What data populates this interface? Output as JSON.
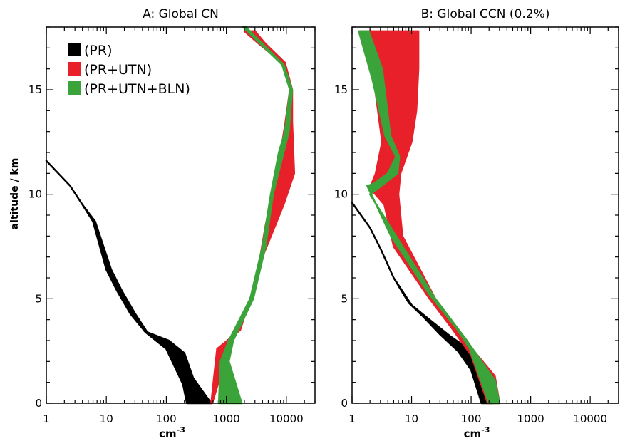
{
  "chart_data": [
    {
      "type": "area",
      "title": "A: Global CN",
      "xlabel": "cm",
      "xlabel_exponent": "-3",
      "ylabel": "altitude / km",
      "x_scale": "log",
      "xlim": [
        1,
        30000
      ],
      "ylim": [
        0,
        18
      ],
      "x_ticks": [
        1,
        10,
        100,
        1000,
        10000
      ],
      "x_tick_labels": [
        "1",
        "10",
        "100",
        "1000",
        "10000"
      ],
      "y_ticks": [
        0,
        5,
        10,
        15
      ],
      "y_tick_labels": [
        "0",
        "5",
        "10",
        "15"
      ],
      "grid": false,
      "legend_position": "top-left",
      "series": [
        {
          "name": "(PR)",
          "color": "#000000",
          "left": [
            [
              1,
              11.6
            ],
            [
              2.5,
              10.4
            ],
            [
              4,
              9.5
            ],
            [
              6,
              8.7
            ],
            [
              10,
              6.4
            ],
            [
              15,
              5.4
            ],
            [
              25,
              4.3
            ],
            [
              45,
              3.4
            ],
            [
              100,
              2.6
            ],
            [
              190,
              0.9
            ],
            [
              220,
              0
            ]
          ],
          "right": [
            [
              1,
              11.6
            ],
            [
              2.5,
              10.4
            ],
            [
              4,
              9.5
            ],
            [
              6.5,
              8.7
            ],
            [
              12,
              6.4
            ],
            [
              18,
              5.4
            ],
            [
              30,
              4.3
            ],
            [
              48,
              3.4
            ],
            [
              110,
              3.0
            ],
            [
              200,
              2.4
            ],
            [
              280,
              1.2
            ],
            [
              560,
              0
            ]
          ]
        },
        {
          "name": "(PR+UTN)",
          "color": "#e8202a",
          "left": [
            [
              2000,
              17.8
            ],
            [
              3500,
              17.2
            ],
            [
              8500,
              16.3
            ],
            [
              11500,
              15.0
            ],
            [
              9500,
              13.3
            ],
            [
              7000,
              11.0
            ],
            [
              4500,
              8.5
            ],
            [
              3200,
              6.0
            ],
            [
              1700,
              3.5
            ],
            [
              700,
              2.6
            ],
            [
              560,
              0
            ]
          ],
          "right": [
            [
              3000,
              17.8
            ],
            [
              4500,
              17.2
            ],
            [
              9500,
              16.3
            ],
            [
              12500,
              15.0
            ],
            [
              12500,
              13.5
            ],
            [
              13500,
              11.0
            ],
            [
              9000,
              9.5
            ],
            [
              4000,
              7.0
            ],
            [
              2500,
              5.0
            ],
            [
              1200,
              3.0
            ],
            [
              580,
              0
            ]
          ]
        },
        {
          "name": "(PR+UTN+BLN)",
          "color": "#3aa33a",
          "left": [
            [
              1900,
              18.0
            ],
            [
              8500,
              16.2
            ],
            [
              11500,
              15.0
            ],
            [
              9500,
              13.0
            ],
            [
              7500,
              12.0
            ],
            [
              5500,
              10.0
            ],
            [
              4000,
              7.5
            ],
            [
              2500,
              5.0
            ],
            [
              1100,
              3.0
            ],
            [
              800,
              2.0
            ],
            [
              750,
              0
            ]
          ],
          "right": [
            [
              2100,
              18.0
            ],
            [
              9000,
              16.2
            ],
            [
              12500,
              15.0
            ],
            [
              11000,
              13.0
            ],
            [
              9000,
              12.0
            ],
            [
              6000,
              10.0
            ],
            [
              4500,
              7.5
            ],
            [
              2800,
              5.0
            ],
            [
              1300,
              3.0
            ],
            [
              1100,
              2.0
            ],
            [
              1800,
              0
            ]
          ]
        }
      ]
    },
    {
      "type": "area",
      "title": "B: Global CCN (0.2%)",
      "xlabel": "cm",
      "xlabel_exponent": "-3",
      "x_scale": "log",
      "xlim": [
        1,
        30000
      ],
      "ylim": [
        0,
        18
      ],
      "x_ticks": [
        1,
        10,
        100,
        1000,
        10000
      ],
      "x_tick_labels": [
        "1",
        "10",
        "100",
        "1000",
        "10000"
      ],
      "y_ticks": [
        0,
        5,
        10,
        15
      ],
      "y_tick_labels": [
        "0",
        "5",
        "10",
        "15"
      ],
      "grid": false,
      "series": [
        {
          "name": "(PR)",
          "color": "#000000",
          "left": [
            [
              1,
              9.6
            ],
            [
              2,
              8.4
            ],
            [
              3,
              7.4
            ],
            [
              5,
              6.0
            ],
            [
              9,
              4.8
            ],
            [
              15,
              4.2
            ],
            [
              30,
              3.3
            ],
            [
              60,
              2.5
            ],
            [
              100,
              1.6
            ],
            [
              150,
              0
            ]
          ],
          "right": [
            [
              1,
              9.6
            ],
            [
              2,
              8.4
            ],
            [
              3,
              7.4
            ],
            [
              5,
              6.0
            ],
            [
              10,
              4.7
            ],
            [
              20,
              4.0
            ],
            [
              45,
              3.2
            ],
            [
              90,
              2.6
            ],
            [
              150,
              1.6
            ],
            [
              230,
              0
            ]
          ]
        },
        {
          "name": "(PR+UTN)",
          "color": "#e8202a",
          "left": [
            [
              1.4,
              17.8
            ],
            [
              2.2,
              16.0
            ],
            [
              3.2,
              12.5
            ],
            [
              2.5,
              11.0
            ],
            [
              2.0,
              10.3
            ],
            [
              3.5,
              9.5
            ],
            [
              5,
              7.5
            ],
            [
              20,
              5.0
            ],
            [
              50,
              3.5
            ],
            [
              100,
              2.3
            ],
            [
              190,
              0
            ]
          ],
          "right": [
            [
              13,
              17.8
            ],
            [
              13,
              16.0
            ],
            [
              12,
              14.0
            ],
            [
              10,
              12.5
            ],
            [
              6.5,
              11.0
            ],
            [
              6.0,
              10.0
            ],
            [
              7,
              8.0
            ],
            [
              25,
              5.0
            ],
            [
              80,
              3.0
            ],
            [
              250,
              1.3
            ],
            [
              300,
              0
            ]
          ]
        },
        {
          "name": "(PR+UTN+BLN)",
          "color": "#3aa33a",
          "left": [
            [
              1.3,
              17.8
            ],
            [
              2.2,
              15.5
            ],
            [
              3.6,
              12.8
            ],
            [
              5.5,
              11.8
            ],
            [
              4.0,
              11.0
            ],
            [
              2.3,
              10.5
            ],
            [
              1.8,
              10.4
            ],
            [
              4.5,
              8.0
            ],
            [
              20,
              5.2
            ],
            [
              60,
              3.5
            ],
            [
              95,
              2.6
            ],
            [
              200,
              0
            ]
          ],
          "right": [
            [
              1.9,
              17.8
            ],
            [
              3.2,
              16.0
            ],
            [
              4.4,
              12.8
            ],
            [
              6.2,
              11.8
            ],
            [
              5.8,
              11.0
            ],
            [
              2.8,
              10.3
            ],
            [
              2.0,
              10.0
            ],
            [
              5.5,
              8.0
            ],
            [
              25,
              5.0
            ],
            [
              80,
              3.1
            ],
            [
              250,
              1.1
            ],
            [
              300,
              0
            ]
          ]
        }
      ]
    }
  ]
}
